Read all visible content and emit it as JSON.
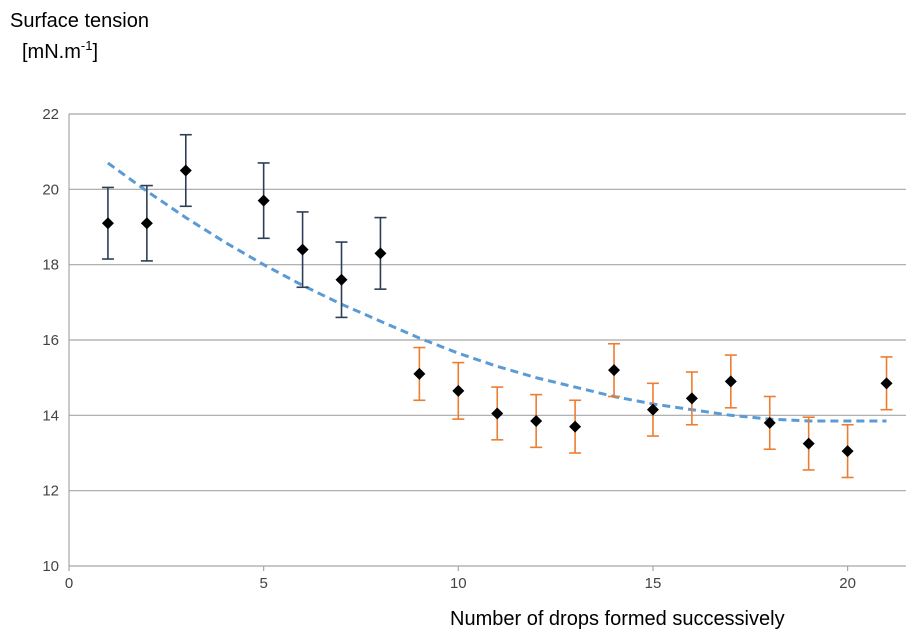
{
  "chart_data": {
    "type": "scatter",
    "title": "",
    "ylabel": {
      "line1": "Surface tension",
      "line2": "[mN.m",
      "sup": "-1",
      "close": "]"
    },
    "xlabel": "Number of drops formed successively",
    "xlim": [
      0,
      21.5
    ],
    "ylim": [
      10,
      22
    ],
    "xticks": [
      0,
      5,
      10,
      15,
      20
    ],
    "yticks": [
      10,
      12,
      14,
      16,
      18,
      20,
      22
    ],
    "grid": "horizontal",
    "legend": "none",
    "colors": {
      "marker": "#000000",
      "errorbar_group1": "#2e3e57",
      "errorbar_group2": "#ed7d31",
      "trend": "#5b9bd5",
      "grid": "#a6a6a6",
      "axis": "#a6a6a6"
    },
    "series": [
      {
        "x": [
          1,
          2,
          3,
          5,
          6,
          7,
          8
        ],
        "y": [
          19.1,
          19.1,
          20.5,
          19.7,
          18.4,
          17.6,
          18.3
        ],
        "err": [
          0.95,
          1.0,
          0.95,
          1.0,
          1.0,
          1.0,
          0.95
        ],
        "errorbar_color": "#2e3e57"
      },
      {
        "x": [
          9,
          10,
          11,
          12,
          13,
          14,
          15,
          16,
          17,
          18,
          19,
          20,
          21
        ],
        "y": [
          15.1,
          14.65,
          14.05,
          13.85,
          13.7,
          15.2,
          14.15,
          14.45,
          14.9,
          13.8,
          13.25,
          13.05,
          14.85
        ],
        "err": [
          0.7,
          0.75,
          0.7,
          0.7,
          0.7,
          0.7,
          0.7,
          0.7,
          0.7,
          0.7,
          0.7,
          0.7,
          0.7
        ],
        "errorbar_color": "#ed7d31"
      }
    ],
    "trendline": {
      "style": "dashed",
      "x": [
        1,
        2,
        3,
        4,
        5,
        6,
        7,
        8,
        9,
        10,
        11,
        12,
        13,
        14,
        15,
        16,
        17,
        18,
        19,
        20,
        21
      ],
      "y": [
        20.7,
        19.95,
        19.25,
        18.6,
        18.0,
        17.45,
        16.95,
        16.5,
        16.05,
        15.65,
        15.3,
        15.0,
        14.75,
        14.5,
        14.3,
        14.15,
        14.0,
        13.9,
        13.85,
        13.85,
        13.85
      ]
    }
  }
}
